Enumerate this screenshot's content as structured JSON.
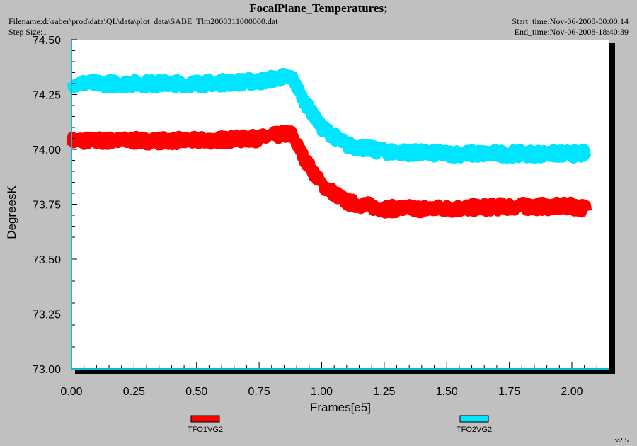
{
  "header": {
    "title": "FocalPlane_Temperatures;",
    "filename": "Filename:d:\\saber\\prod\\data\\QL\\data\\plot_data\\SABE_Tlm2008311000000.dat",
    "step_size": "Step Size:1",
    "start_time": "Start_time:Nov-06-2008-00:00:14",
    "end_time": "End_time:Nov-06-2008-18:40:39"
  },
  "footer": {
    "version": "v2.5"
  },
  "colors": {
    "background": "#c0c0c0",
    "plot_bg": "#ffffff",
    "axis": "#00bcd4",
    "series1": "#ff0000",
    "series2": "#00e5ff"
  },
  "chart_data": {
    "type": "line",
    "title": "FocalPlane_Temperatures;",
    "xlabel": "Frames[e5]",
    "ylabel": "DegreesK",
    "xlim": [
      0,
      2.15
    ],
    "ylim": [
      73.0,
      74.5
    ],
    "x_ticks": [
      "0.00",
      "0.25",
      "0.50",
      "0.75",
      "1.00",
      "1.25",
      "1.50",
      "1.75",
      "2.00"
    ],
    "y_ticks": [
      "74.50",
      "74.25",
      "74.00",
      "73.75",
      "73.50",
      "73.25",
      "73.00"
    ],
    "legend_position": "bottom",
    "grid": false,
    "series": [
      {
        "name": "TFO1VG2",
        "color": "#ff0000",
        "x": [
          0.0,
          0.25,
          0.5,
          0.75,
          0.85,
          0.88,
          0.93,
          1.0,
          1.1,
          1.25,
          1.5,
          1.75,
          2.0,
          2.06
        ],
        "y": [
          74.04,
          74.04,
          74.04,
          74.05,
          74.07,
          74.07,
          73.96,
          73.84,
          73.76,
          73.73,
          73.73,
          73.74,
          73.74,
          73.73
        ]
      },
      {
        "name": "TFO2VG2",
        "color": "#00e5ff",
        "x": [
          0.0,
          0.25,
          0.5,
          0.75,
          0.85,
          0.88,
          0.93,
          1.0,
          1.1,
          1.25,
          1.5,
          1.75,
          2.0,
          2.06
        ],
        "y": [
          74.3,
          74.3,
          74.3,
          74.31,
          74.33,
          74.33,
          74.22,
          74.1,
          74.02,
          73.99,
          73.98,
          73.98,
          73.98,
          73.98
        ]
      }
    ]
  }
}
